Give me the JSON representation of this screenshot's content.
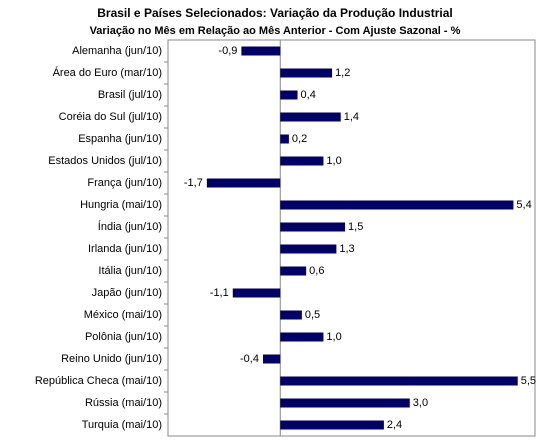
{
  "chart_data": {
    "type": "hbar",
    "title": "Brasil e Países Selecionados: Variação da Produção Industrial",
    "subtitle": "Variação no Mês em Relação ao Mês Anterior - Com Ajuste Sazonal - %",
    "categories": [
      "Alemanha (jun/10)",
      "Área do Euro (mar/10)",
      "Brasil (jul/10)",
      "Coréia do Sul (jul/10)",
      "Espanha (jun/10)",
      "Estados Unidos (jul/10)",
      "França (jun/10)",
      "Hungria (mai/10)",
      "Índia (jun/10)",
      "Irlanda (jun/10)",
      "Itália (jun/10)",
      "Japão (jun/10)",
      "México (mai/10)",
      "Polônia (jun/10)",
      "Reino Unido (jun/10)",
      "República Checa (mai/10)",
      "Rússia (mai/10)",
      "Turquia (mai/10)"
    ],
    "values": [
      -0.9,
      1.2,
      0.4,
      1.4,
      0.2,
      1.0,
      -1.7,
      5.4,
      1.5,
      1.3,
      0.6,
      -1.1,
      0.5,
      1.0,
      -0.4,
      5.5,
      3.0,
      2.4
    ],
    "value_labels": [
      "-0,9",
      "1,2",
      "0,4",
      "1,4",
      "0,2",
      "1,0",
      "-1,7",
      "5,4",
      "1,5",
      "1,3",
      "0,6",
      "-1,1",
      "0,5",
      "1,0",
      "-0,4",
      "5,5",
      "3,0",
      "2,4"
    ],
    "color": "#000066",
    "xlim": [
      -2.6,
      5.9
    ]
  }
}
